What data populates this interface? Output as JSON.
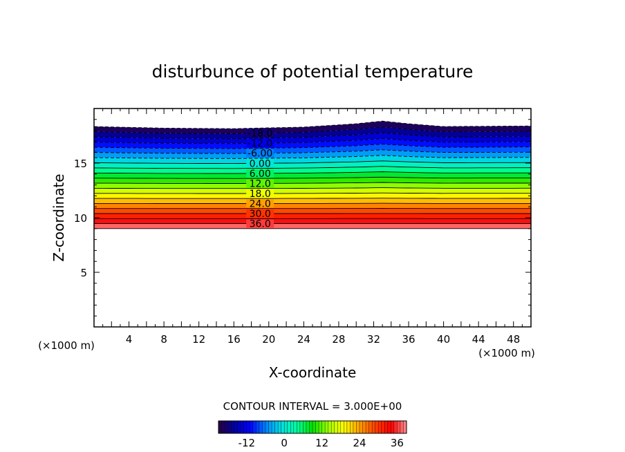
{
  "chart_data": {
    "type": "contour",
    "title": "disturbunce of potential temperature",
    "xlabel": "X-coordinate",
    "ylabel": "Z-coordinate",
    "x_unit_left": "(×1000 m)",
    "x_unit_right": "(×1000 m)",
    "xlim": [
      0,
      50
    ],
    "ylim": [
      0,
      20
    ],
    "xticks": [
      4,
      8,
      12,
      16,
      20,
      24,
      28,
      32,
      36,
      40,
      44,
      48
    ],
    "yticks": [
      5,
      10,
      15
    ],
    "contour_interval_text": "CONTOUR INTERVAL = 3.000E+00",
    "contour_interval": 3,
    "level_range": [
      -21,
      39
    ],
    "field_extent": {
      "z_bottom": 9.0,
      "top_profile": [
        {
          "x": 0,
          "z": 18.35
        },
        {
          "x": 8,
          "z": 18.2
        },
        {
          "x": 16,
          "z": 18.15
        },
        {
          "x": 24,
          "z": 18.3
        },
        {
          "x": 30,
          "z": 18.6
        },
        {
          "x": 33,
          "z": 18.85
        },
        {
          "x": 36,
          "z": 18.6
        },
        {
          "x": 40,
          "z": 18.35
        },
        {
          "x": 50,
          "z": 18.4
        }
      ]
    },
    "contour_labels": [
      "-18.0",
      "-12.0",
      "-6.00",
      "0.00",
      "6.00",
      "12.0",
      "18.0",
      "24.0",
      "30.0",
      "36.0"
    ],
    "colorbar": {
      "tick_labels": [
        "-12",
        "0",
        "12",
        "24",
        "36"
      ],
      "tick_values": [
        -12,
        0,
        12,
        24,
        36
      ],
      "range": [
        -21,
        39
      ]
    },
    "colormap": [
      "#2a0040",
      "#0000a0",
      "#0000ff",
      "#0080ff",
      "#00e0e0",
      "#00ffa0",
      "#00e000",
      "#a0ff00",
      "#ffff00",
      "#ffa000",
      "#ff4000",
      "#ff0000",
      "#ff9090"
    ]
  }
}
